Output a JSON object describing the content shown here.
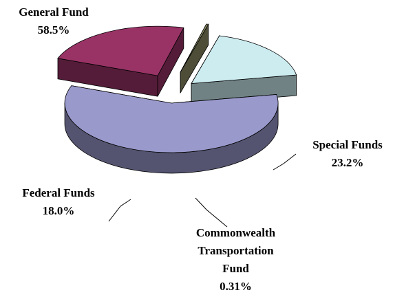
{
  "chart_data": {
    "type": "pie",
    "categories": [
      "General Fund",
      "Special Funds",
      "Commonwealth Transportation Fund",
      "Federal Funds"
    ],
    "values": [
      58.5,
      23.2,
      0.31,
      18
    ],
    "value_labels": [
      "58.5%",
      "23.2%",
      "0.31%",
      "18.0%"
    ],
    "colors": [
      "#9999cc",
      "#993366",
      "#8c8c66",
      "#ccecf0"
    ]
  }
}
